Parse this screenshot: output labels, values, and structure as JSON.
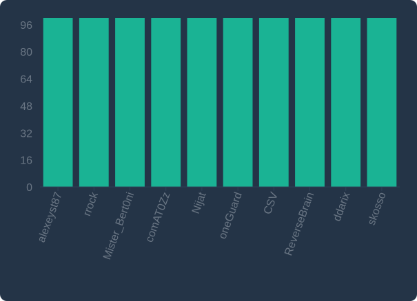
{
  "chart_data": {
    "type": "bar",
    "title": "",
    "xlabel": "",
    "ylabel": "",
    "categories": [
      "alexeyst87",
      "rrock",
      "Mister_Bert0ni",
      "comAT0Zz",
      "Nijat",
      "oneGuard",
      "CSV",
      "ReverseBrain",
      "ddarix",
      "skosso"
    ],
    "values": [
      100,
      100,
      100,
      100,
      100,
      100,
      100,
      100,
      100,
      100
    ],
    "yticks": [
      0,
      16,
      32,
      48,
      64,
      80,
      96
    ],
    "ylim": [
      0,
      100
    ],
    "grid": false,
    "legend": "none"
  },
  "colors": {
    "background": "#243447",
    "bar": "#1ab394",
    "tick_text": "#6a7684",
    "axis_line": "#2e4157"
  }
}
